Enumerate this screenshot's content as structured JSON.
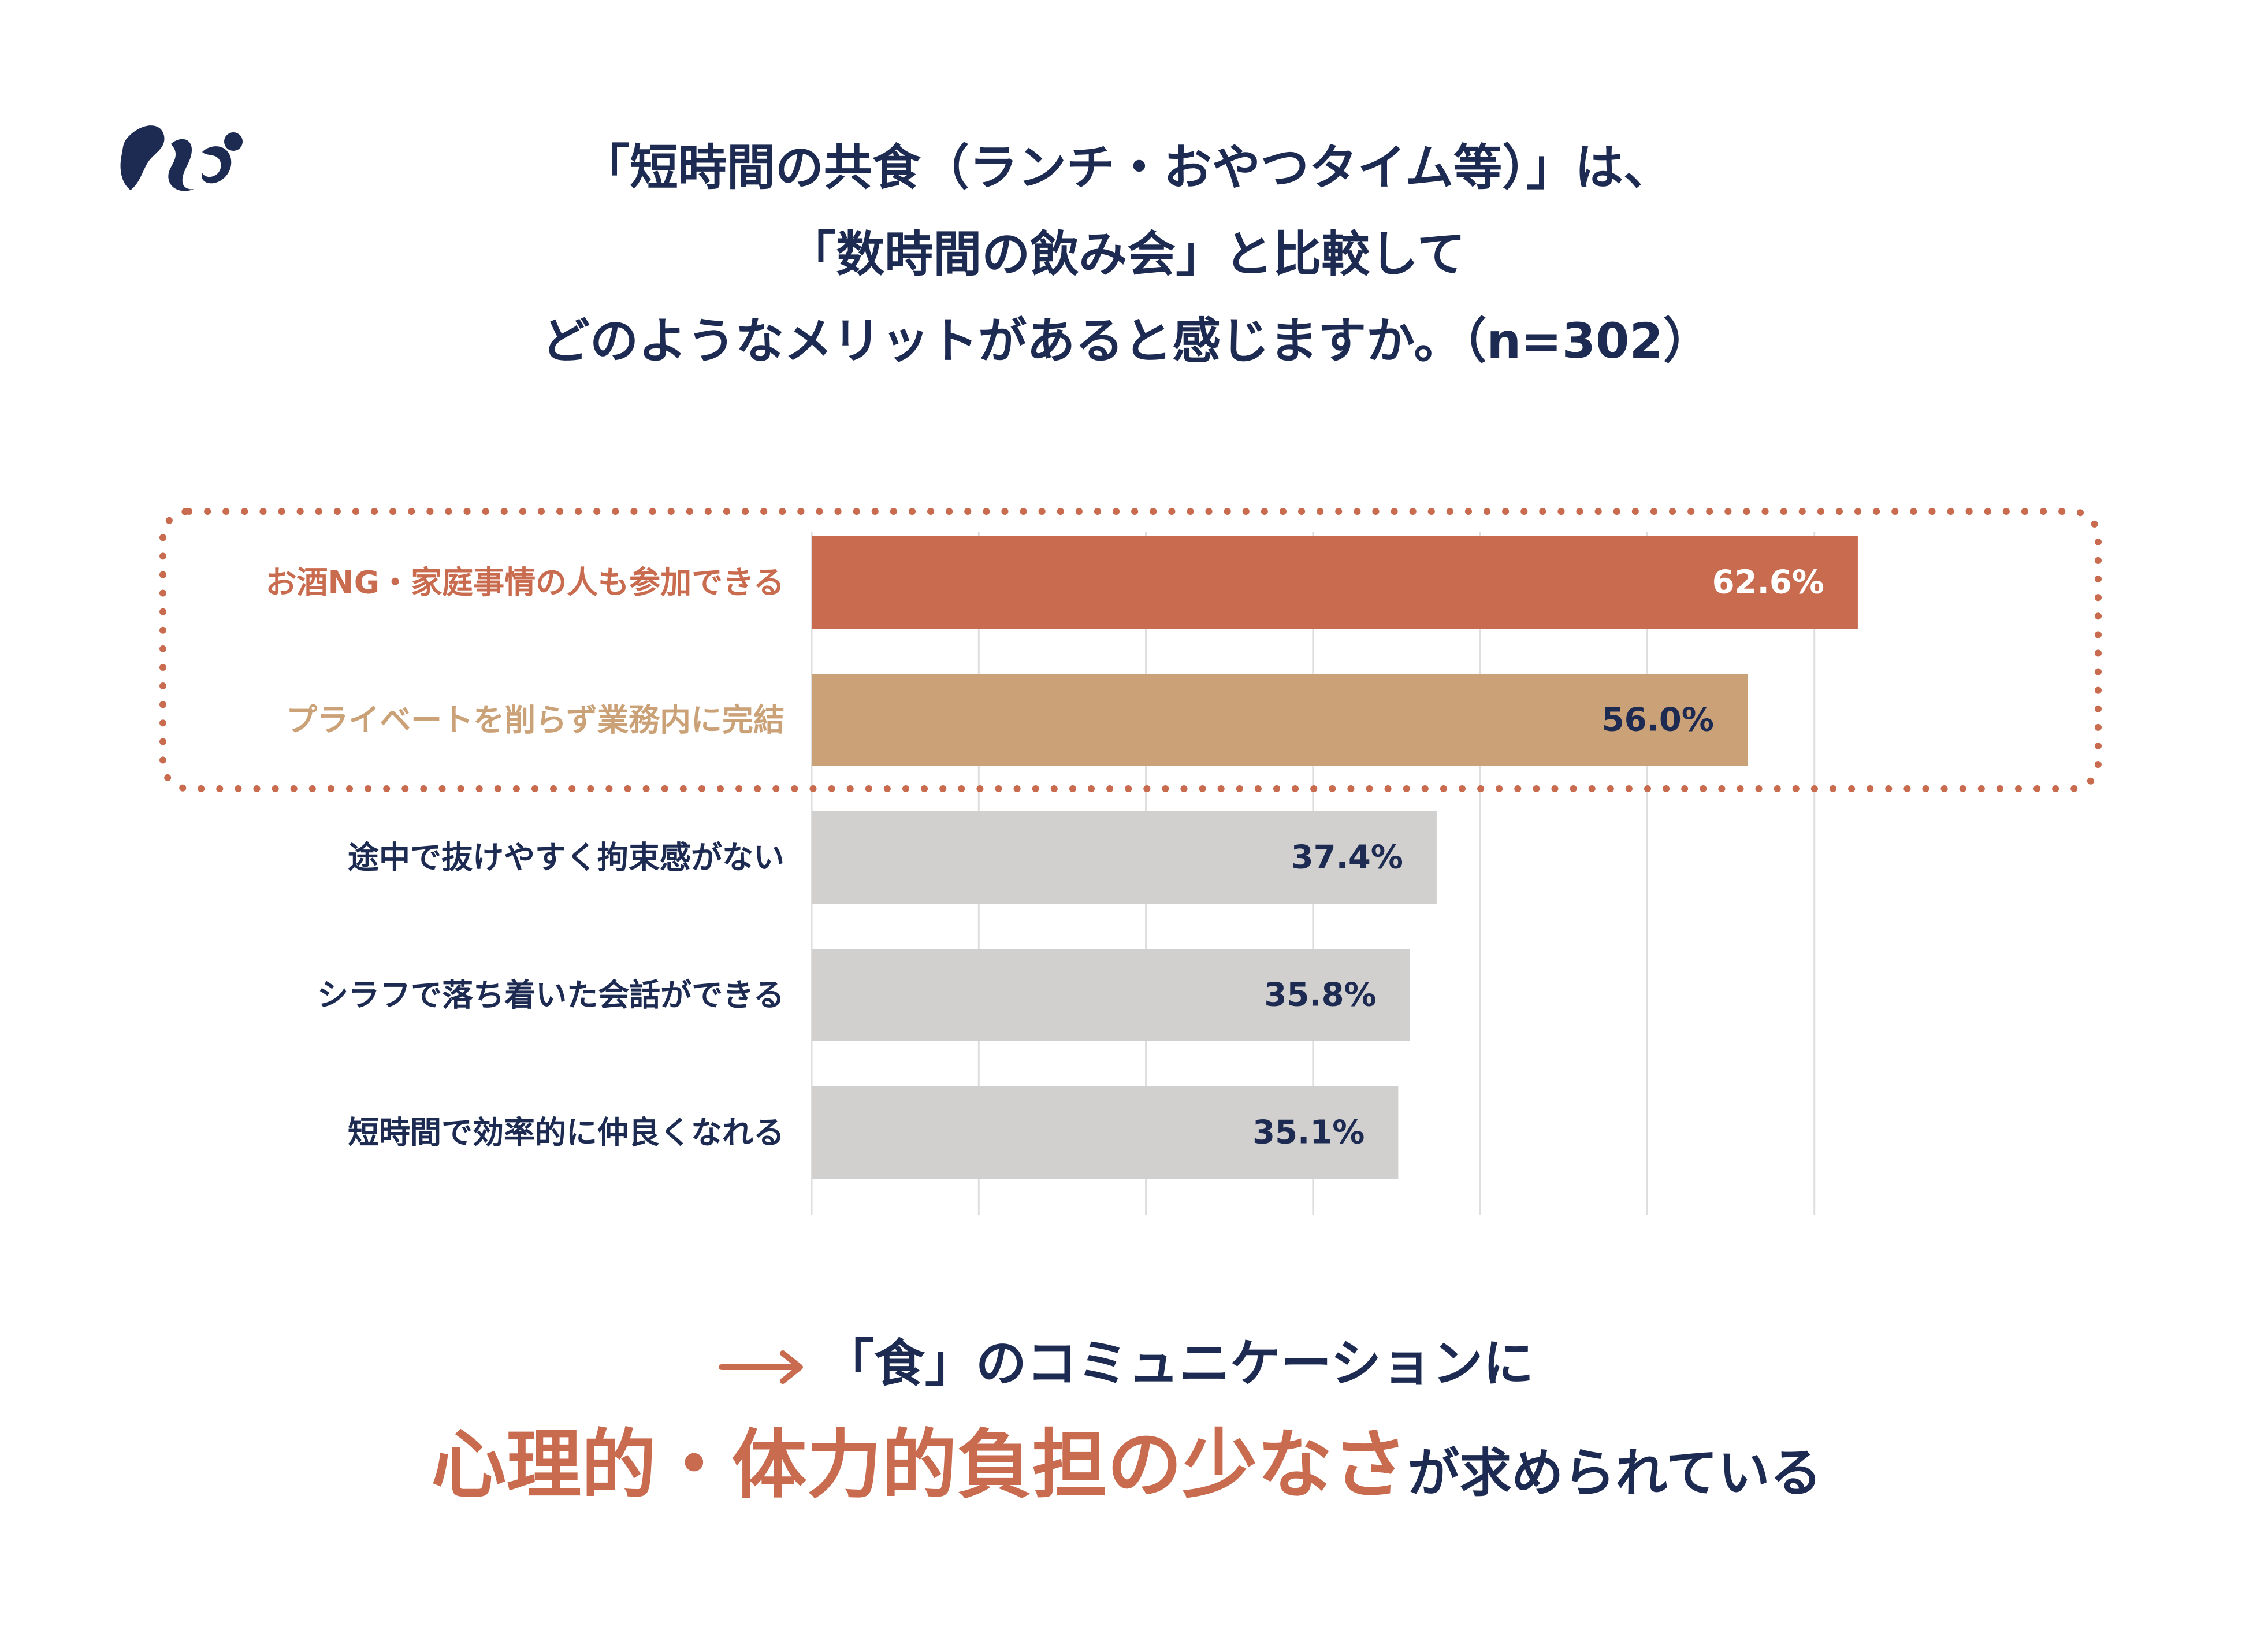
{
  "title": {
    "line1": "「短時間の共食（ランチ・おやつタイム等）」は、",
    "line2": "「数時間の飲み会」と比較して",
    "line3": "どのようなメリットがあると感じますか。（n=302）"
  },
  "logo": {
    "icon": "squirrel-logo-icon",
    "color": "#1d2b52"
  },
  "chart_data": {
    "type": "bar",
    "orientation": "horizontal",
    "categories": [
      "お酒NG・家庭事情の人も参加できる",
      "プライベートを削らず業務内に完結",
      "途中で抜けやすく拘束感がない",
      "シラフで落ち着いた会話ができる",
      "短時間で効率的に仲良くなれる"
    ],
    "values": [
      62.6,
      56.0,
      37.4,
      35.8,
      35.1
    ],
    "value_labels": [
      "62.6%",
      "56.0%",
      "37.4%",
      "35.8%",
      "35.1%"
    ],
    "bar_colors": [
      "#c96b4e",
      "#cba177",
      "#d1d0ce",
      "#d1d0ce",
      "#d1d0ce"
    ],
    "label_colors": [
      "#c96b4e",
      "#cba177",
      "#1d2b52",
      "#1d2b52",
      "#1d2b52"
    ],
    "value_label_colors": [
      "#ffffff",
      "#1d2b52",
      "#1d2b52",
      "#1d2b52",
      "#1d2b52"
    ],
    "xlim": [
      0,
      70
    ],
    "grid_step": 10,
    "grid": true,
    "highlight_box": {
      "style": "dotted",
      "color": "#c96b4e",
      "covers_first_n": 2
    }
  },
  "conclusion": {
    "arrow_icon": "right-arrow-icon",
    "accent_color": "#c96b4e",
    "line1": "「食」のコミュニケーションに",
    "line2_highlight": "心理的・体力的負担の少なさ",
    "line2_rest": "が求められている"
  }
}
